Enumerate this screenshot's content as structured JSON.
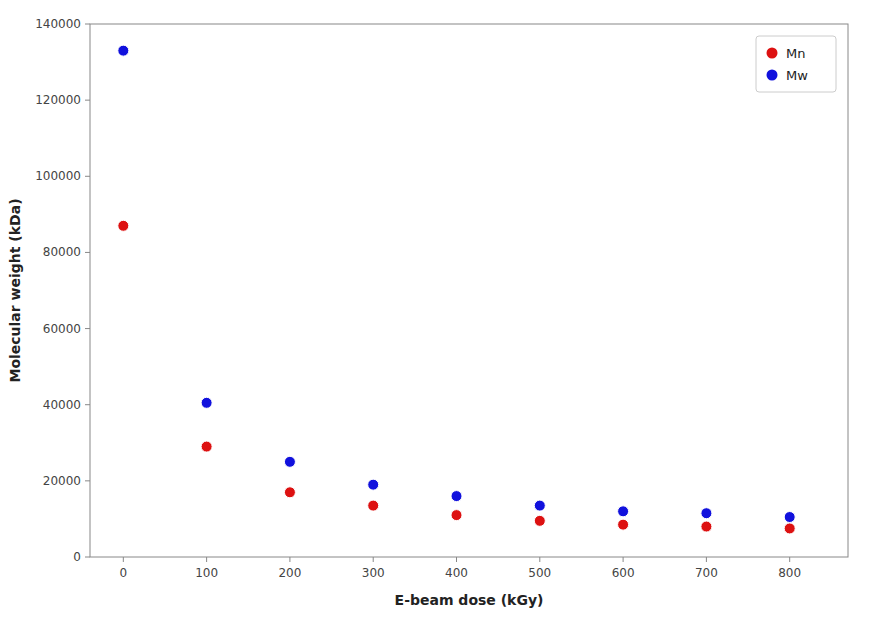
{
  "chart_data": {
    "type": "scatter",
    "xlabel": "E-beam dose (kGy)",
    "ylabel": "Molecular weight (kDa)",
    "x": [
      0,
      100,
      200,
      300,
      400,
      500,
      600,
      700,
      800
    ],
    "series": [
      {
        "name": "Mn",
        "color": "#dd1111",
        "values": [
          87000,
          29000,
          17000,
          13500,
          11000,
          9500,
          8500,
          8000,
          7500
        ]
      },
      {
        "name": "Mw",
        "color": "#1111dd",
        "values": [
          133000,
          40500,
          25000,
          19000,
          16000,
          13500,
          12000,
          11500,
          10500
        ]
      }
    ],
    "xlim": [
      -40,
      870
    ],
    "ylim": [
      0,
      140000
    ],
    "xticks": [
      0,
      100,
      200,
      300,
      400,
      500,
      600,
      700,
      800
    ],
    "yticks": [
      0,
      20000,
      40000,
      60000,
      80000,
      100000,
      120000,
      140000
    ],
    "grid": false,
    "legend": "upper right"
  }
}
